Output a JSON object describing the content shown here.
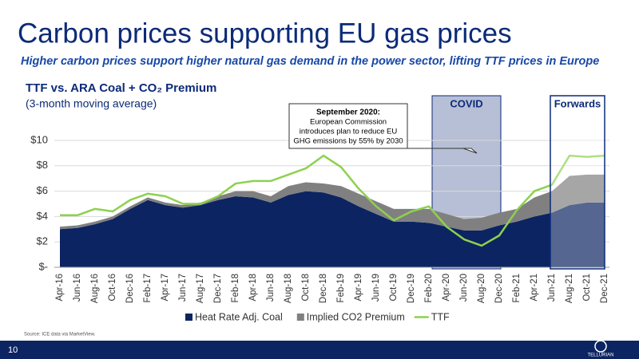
{
  "header": {
    "title": "Carbon prices supporting EU gas prices",
    "subtitle": "Higher carbon prices support higher natural gas demand in the power sector, lifting TTF prices in Europe"
  },
  "chart_data": {
    "type": "stacked_area_line",
    "title": "TTF vs. ARA Coal + CO₂ Premium",
    "subtitle": "(3-month moving average)",
    "categories": [
      "Apr-16",
      "Jun-16",
      "Aug-16",
      "Oct-16",
      "Dec-16",
      "Feb-17",
      "Apr-17",
      "Jun-17",
      "Aug-17",
      "Dec-17",
      "Feb-18",
      "Apr-18",
      "Jun-18",
      "Aug-18",
      "Oct-18",
      "Dec-18",
      "Feb-19",
      "Apr-19",
      "Jun-19",
      "Oct-19",
      "Dec-19",
      "Feb-20",
      "Apr-20",
      "Jun-20",
      "Aug-20",
      "Dec-20",
      "Feb-21",
      "Apr-21",
      "Jun-21",
      "Aug-21",
      "Oct-21",
      "Dec-21"
    ],
    "series": [
      {
        "name": "Heat Rate Adj. Coal",
        "type": "area",
        "color": "#0c2461",
        "values": [
          3.0,
          3.1,
          3.4,
          3.8,
          4.6,
          5.3,
          4.9,
          4.7,
          4.9,
          5.3,
          5.6,
          5.5,
          5.1,
          5.7,
          6.0,
          5.9,
          5.5,
          4.8,
          4.2,
          3.6,
          3.6,
          3.5,
          3.2,
          2.9,
          2.9,
          3.3,
          3.6,
          4.0,
          4.3,
          4.9,
          5.1,
          5.1
        ]
      },
      {
        "name": "Implied CO2 Premium",
        "type": "area",
        "color": "#808080",
        "values": [
          0.2,
          0.2,
          0.2,
          0.2,
          0.2,
          0.2,
          0.2,
          0.2,
          0.2,
          0.3,
          0.4,
          0.5,
          0.5,
          0.7,
          0.7,
          0.7,
          0.9,
          1.0,
          1.0,
          1.0,
          1.0,
          1.1,
          1.0,
          0.9,
          1.0,
          1.0,
          1.0,
          1.5,
          1.7,
          2.3,
          2.2,
          2.2
        ]
      },
      {
        "name": "TTF",
        "type": "line",
        "color": "#8dd14f",
        "values": [
          4.1,
          4.1,
          4.6,
          4.4,
          5.3,
          5.8,
          5.6,
          5.0,
          5.0,
          5.6,
          6.6,
          6.8,
          6.8,
          7.3,
          7.8,
          8.8,
          7.9,
          6.2,
          4.8,
          3.7,
          4.4,
          4.8,
          3.2,
          2.2,
          1.7,
          2.5,
          4.5,
          6.0,
          6.5,
          8.8,
          8.7,
          8.8
        ]
      }
    ],
    "ylim": [
      0,
      10
    ],
    "yticks": [
      {
        "value": 0,
        "label": "$-"
      },
      {
        "value": 2,
        "label": "$2"
      },
      {
        "value": 4,
        "label": "$4"
      },
      {
        "value": 6,
        "label": "$6"
      },
      {
        "value": 8,
        "label": "$8"
      },
      {
        "value": 10,
        "label": "$10"
      }
    ],
    "annotations": {
      "covid": "COVID",
      "forwards": "Forwards",
      "callout_title": "September 2020:",
      "callout_lines": [
        "European Commission",
        "introduces plan to reduce EU",
        "GHG emissions by 55% by 2030"
      ]
    },
    "legend": "bottom"
  },
  "footer": {
    "source": "Source:   ICE data via MarketView.",
    "page": "10",
    "logo": "TELLURIAN"
  }
}
